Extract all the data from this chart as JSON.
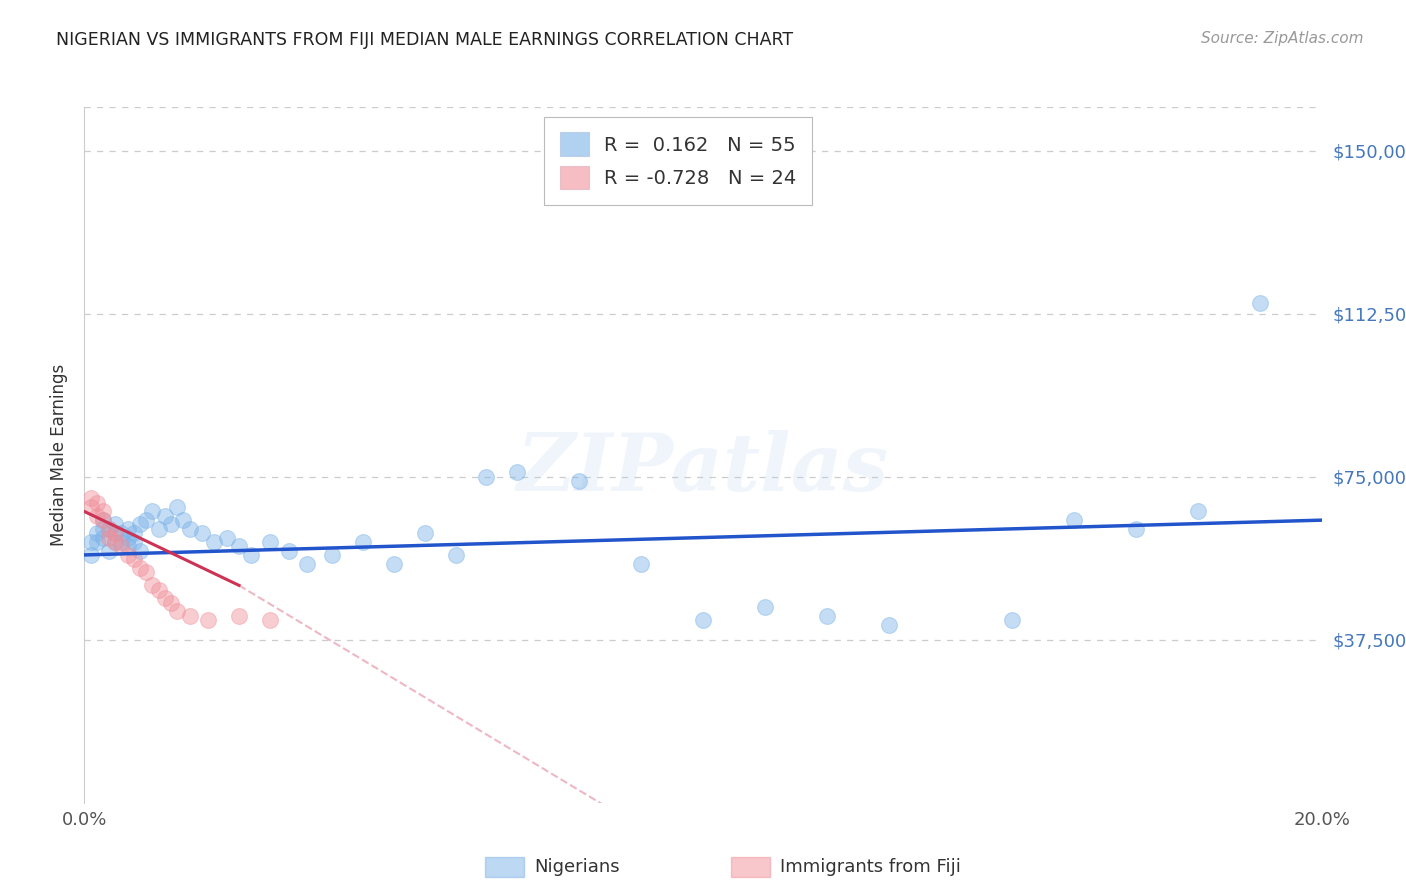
{
  "title": "NIGERIAN VS IMMIGRANTS FROM FIJI MEDIAN MALE EARNINGS CORRELATION CHART",
  "source": "Source: ZipAtlas.com",
  "ylabel": "Median Male Earnings",
  "xlim": [
    0.0,
    0.2
  ],
  "ylim": [
    0,
    160000
  ],
  "yticks": [
    0,
    37500,
    75000,
    112500,
    150000
  ],
  "ytick_labels": [
    "",
    "$37,500",
    "$75,000",
    "$112,500",
    "$150,000"
  ],
  "xticks": [
    0.0,
    0.05,
    0.1,
    0.15,
    0.2
  ],
  "xtick_labels": [
    "0.0%",
    "",
    "",
    "",
    "20.0%"
  ],
  "background_color": "#ffffff",
  "grid_color": "#cccccc",
  "blue_color": "#7db3e8",
  "pink_color": "#f0919b",
  "blue_line_color": "#2255cc",
  "pink_line_color": "#cc3355",
  "axis_label_color": "#4477bb",
  "legend_label_blue": "Nigerians",
  "legend_label_pink": "Immigrants from Fiji",
  "R_blue": 0.162,
  "N_blue": 55,
  "R_pink": -0.728,
  "N_pink": 24,
  "nigerians_x": [
    0.001,
    0.001,
    0.002,
    0.002,
    0.003,
    0.003,
    0.003,
    0.004,
    0.004,
    0.005,
    0.005,
    0.005,
    0.006,
    0.006,
    0.007,
    0.007,
    0.007,
    0.008,
    0.008,
    0.009,
    0.009,
    0.01,
    0.011,
    0.012,
    0.013,
    0.014,
    0.015,
    0.016,
    0.017,
    0.019,
    0.021,
    0.023,
    0.025,
    0.027,
    0.03,
    0.033,
    0.036,
    0.04,
    0.045,
    0.05,
    0.055,
    0.06,
    0.065,
    0.07,
    0.08,
    0.09,
    0.1,
    0.11,
    0.12,
    0.13,
    0.15,
    0.16,
    0.17,
    0.18,
    0.19
  ],
  "nigerians_y": [
    60000,
    57000,
    60000,
    62000,
    63000,
    61000,
    65000,
    58000,
    63000,
    60000,
    62000,
    64000,
    60000,
    62000,
    59000,
    61000,
    63000,
    60000,
    62000,
    58000,
    64000,
    65000,
    67000,
    63000,
    66000,
    64000,
    68000,
    65000,
    63000,
    62000,
    60000,
    61000,
    59000,
    57000,
    60000,
    58000,
    55000,
    57000,
    60000,
    55000,
    62000,
    57000,
    75000,
    76000,
    74000,
    55000,
    42000,
    45000,
    43000,
    41000,
    42000,
    65000,
    63000,
    67000,
    115000
  ],
  "fiji_x": [
    0.001,
    0.001,
    0.002,
    0.002,
    0.003,
    0.003,
    0.004,
    0.004,
    0.005,
    0.005,
    0.006,
    0.007,
    0.008,
    0.009,
    0.01,
    0.011,
    0.012,
    0.013,
    0.014,
    0.015,
    0.017,
    0.02,
    0.025,
    0.03
  ],
  "fiji_y": [
    68000,
    70000,
    66000,
    69000,
    65000,
    67000,
    63000,
    61000,
    62000,
    60000,
    59000,
    57000,
    56000,
    54000,
    53000,
    50000,
    49000,
    47000,
    46000,
    44000,
    43000,
    42000,
    43000,
    42000
  ]
}
